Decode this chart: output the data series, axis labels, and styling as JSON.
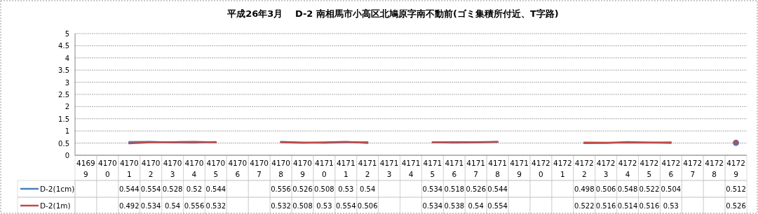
{
  "chart_data": {
    "type": "line",
    "title": "平成26年3月　 D-2 南相馬市小高区北鳩原字南不動前(ゴミ集積所付近、T字路)",
    "categories": [
      "41699",
      "41700",
      "41701",
      "41702",
      "41703",
      "41704",
      "41705",
      "41706",
      "41707",
      "41708",
      "41709",
      "41710",
      "41711",
      "41712",
      "41713",
      "41714",
      "41715",
      "41716",
      "41717",
      "41718",
      "41719",
      "41720",
      "41721",
      "41722",
      "41723",
      "41724",
      "41725",
      "41726",
      "41727",
      "41728",
      "41729"
    ],
    "series": [
      {
        "name": "D-2(1cm)",
        "color": "#4a7ebb",
        "values": [
          null,
          null,
          0.544,
          0.554,
          0.528,
          0.52,
          0.544,
          null,
          null,
          0.556,
          0.526,
          0.508,
          0.53,
          0.54,
          null,
          null,
          0.534,
          0.518,
          0.526,
          0.544,
          null,
          null,
          null,
          0.498,
          0.506,
          0.548,
          0.522,
          0.504,
          null,
          null,
          0.512
        ]
      },
      {
        "name": "D-2(1m)",
        "color": "#be4b48",
        "values": [
          null,
          null,
          0.492,
          0.534,
          0.54,
          0.556,
          0.532,
          null,
          null,
          0.532,
          0.508,
          0.53,
          0.554,
          0.506,
          null,
          null,
          0.534,
          0.538,
          0.54,
          0.554,
          null,
          null,
          null,
          0.522,
          0.516,
          0.514,
          0.516,
          0.53,
          null,
          null,
          0.526
        ]
      }
    ],
    "ylim": [
      0,
      5
    ],
    "yticks": [
      0,
      0.5,
      1,
      1.5,
      2,
      2.5,
      3,
      3.5,
      4,
      4.5,
      5
    ],
    "grid": "y",
    "data_labels": true,
    "legend": "bottom",
    "marker": "none",
    "line_style": "solid"
  }
}
